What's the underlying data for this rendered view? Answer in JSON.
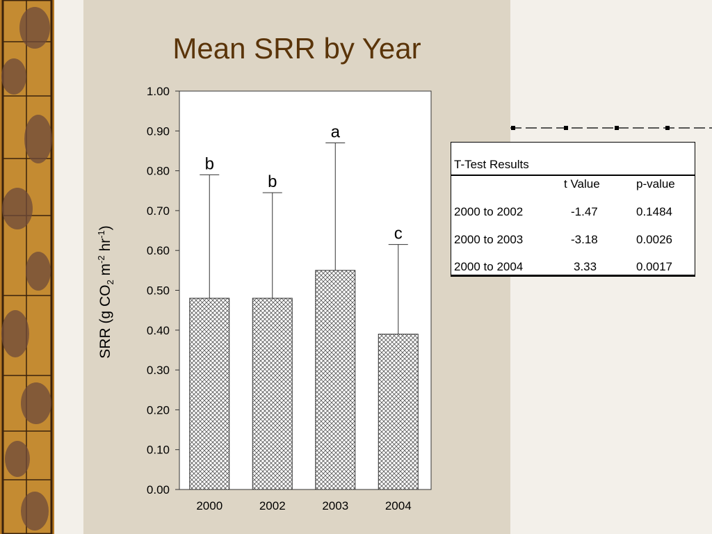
{
  "slide": {
    "title": "Mean SRR by Year",
    "colors": {
      "title": "#5a3409",
      "panel": "#ddd5c5",
      "background": "#f3f0ea",
      "border": "#c98f2e"
    }
  },
  "chart_data": {
    "type": "bar",
    "categories": [
      "2000",
      "2002",
      "2003",
      "2004"
    ],
    "values": [
      0.48,
      0.48,
      0.55,
      0.39
    ],
    "error_upper": [
      0.79,
      0.745,
      0.87,
      0.615
    ],
    "significance_letters": [
      "b",
      "b",
      "a",
      "c"
    ],
    "ylabel_parts": {
      "pre": "SRR (g CO",
      "sub": "2",
      "mid": " m",
      "sup1": "-2",
      "mid2": " hr",
      "sup2": "-1",
      "post": ")"
    },
    "ylim": [
      0,
      1.0
    ],
    "yticks": [
      "0.00",
      "0.10",
      "0.20",
      "0.30",
      "0.40",
      "0.50",
      "0.60",
      "0.70",
      "0.80",
      "0.90",
      "1.00"
    ],
    "bar_fill": "crosshatch",
    "grid": false
  },
  "ttest_table": {
    "title": "T-Test Results",
    "headers": {
      "t": "t Value",
      "p": "p-value"
    },
    "rows": [
      {
        "label": "2000 to 2002",
        "t": "-1.47",
        "p": "0.1484"
      },
      {
        "label": "2000 to 2003",
        "t": "-3.18",
        "p": "0.0026"
      },
      {
        "label": "2000 to 2004",
        "t": "3.33",
        "p": "0.0017"
      }
    ]
  }
}
